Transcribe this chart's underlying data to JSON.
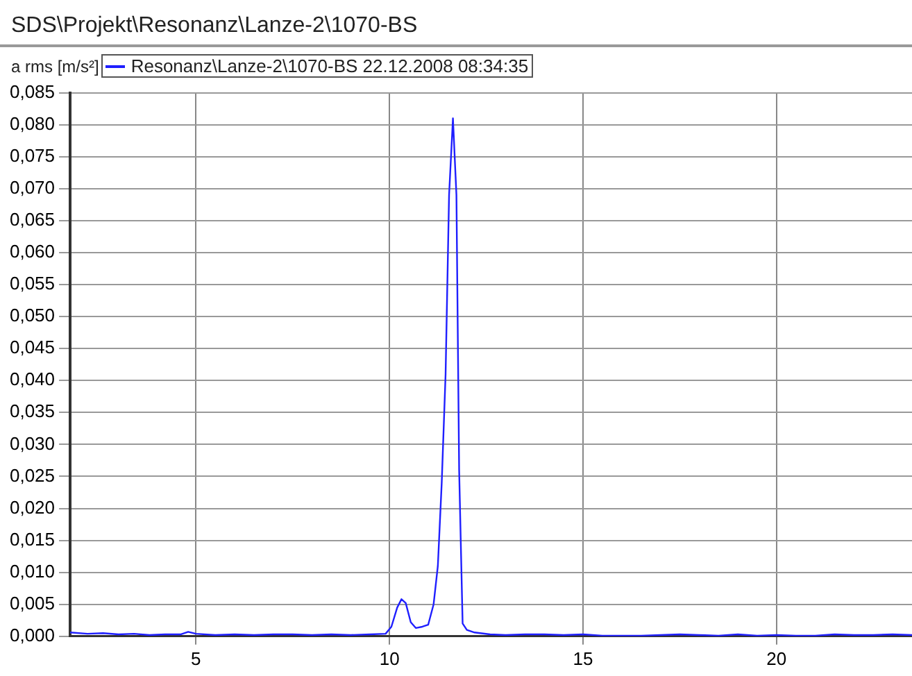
{
  "chart_data": {
    "type": "line",
    "title": "SDS\\Projekt\\Resonanz\\Lanze-2\\1070-BS",
    "ylabel": "a rms [m/s²]",
    "series": [
      {
        "name": "Resonanz\\Lanze-2\\1070-BS 22.12.2008 08:34:35",
        "color": "#1f1fff",
        "x": [
          1.75,
          2.2,
          2.6,
          3.0,
          3.4,
          3.8,
          4.2,
          4.6,
          4.8,
          5.0,
          5.5,
          6.0,
          6.5,
          7.0,
          7.5,
          8.0,
          8.5,
          9.0,
          9.5,
          9.9,
          10.05,
          10.2,
          10.31,
          10.42,
          10.55,
          10.68,
          10.85,
          11.0,
          11.14,
          11.25,
          11.35,
          11.45,
          11.54,
          11.64,
          11.73,
          11.8,
          11.89,
          12.0,
          12.2,
          12.6,
          13.0,
          13.5,
          14.0,
          14.5,
          15.0,
          15.5,
          16.0,
          16.5,
          17.0,
          17.5,
          18.0,
          18.5,
          19.0,
          19.5,
          20.0,
          20.5,
          21.0,
          21.5,
          22.0,
          22.5,
          23.0,
          23.5
        ],
        "values": [
          0.0006,
          0.0004,
          0.0005,
          0.0003,
          0.0004,
          0.0002,
          0.0003,
          0.0003,
          0.0007,
          0.0004,
          0.0002,
          0.0003,
          0.0002,
          0.0003,
          0.0003,
          0.0002,
          0.0003,
          0.0002,
          0.0003,
          0.0004,
          0.0015,
          0.0045,
          0.0058,
          0.0052,
          0.0022,
          0.0013,
          0.0015,
          0.0018,
          0.005,
          0.011,
          0.024,
          0.041,
          0.069,
          0.081,
          0.069,
          0.026,
          0.002,
          0.001,
          0.0006,
          0.0003,
          0.0002,
          0.0003,
          0.0003,
          0.0002,
          0.0003,
          0.0001,
          0.0001,
          0.0001,
          0.0002,
          0.0003,
          0.0002,
          0.0001,
          0.0003,
          0.0001,
          0.0002,
          0.0001,
          0.0001,
          0.0003,
          0.0002,
          0.0002,
          0.0003,
          0.0002
        ]
      }
    ],
    "xlim": [
      1.75,
      23.5
    ],
    "xticks": [
      5,
      10,
      15,
      20
    ],
    "ylim": [
      0,
      0.085
    ],
    "yticks": [
      {
        "value": 0,
        "label": "0,000"
      },
      {
        "value": 0.005,
        "label": "0,005"
      },
      {
        "value": 0.01,
        "label": "0,010"
      },
      {
        "value": 0.015,
        "label": "0,015"
      },
      {
        "value": 0.02,
        "label": "0,020"
      },
      {
        "value": 0.025,
        "label": "0,025"
      },
      {
        "value": 0.03,
        "label": "0,030"
      },
      {
        "value": 0.035,
        "label": "0,035"
      },
      {
        "value": 0.04,
        "label": "0,040"
      },
      {
        "value": 0.045,
        "label": "0,045"
      },
      {
        "value": 0.05,
        "label": "0,050"
      },
      {
        "value": 0.055,
        "label": "0,055"
      },
      {
        "value": 0.06,
        "label": "0,060"
      },
      {
        "value": 0.065,
        "label": "0,065"
      },
      {
        "value": 0.07,
        "label": "0,070"
      },
      {
        "value": 0.075,
        "label": "0,075"
      },
      {
        "value": 0.08,
        "label": "0,080"
      },
      {
        "value": 0.085,
        "label": "0,085"
      }
    ],
    "grid": true,
    "legend": "top left",
    "marker": "none",
    "line_style": "solid"
  }
}
